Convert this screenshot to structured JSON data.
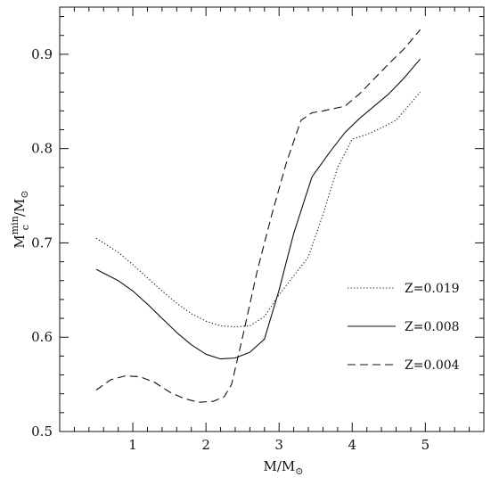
{
  "chart_data": {
    "type": "line",
    "title": "",
    "xlabel": "M/M",
    "xlabel_sub": "⊙",
    "ylabel": "M",
    "ylabel_sup": "min",
    "ylabel_sub": "c",
    "ylabel_tail": "/M",
    "ylabel_tail_sub": "⊙",
    "xlim": [
      0.0,
      5.8
    ],
    "ylim": [
      0.5,
      0.95
    ],
    "xticks": [
      1,
      2,
      3,
      4,
      5
    ],
    "yticks": [
      0.5,
      0.6,
      0.7,
      0.8,
      0.9
    ],
    "xtick_labels": [
      "1",
      "2",
      "3",
      "4",
      "5"
    ],
    "ytick_labels": [
      "0.5",
      "0.6",
      "0.7",
      "0.8",
      "0.9"
    ],
    "grid": false,
    "legend_position": "right",
    "series": [
      {
        "name": "Z=0.019",
        "style": "dotted",
        "x": [
          0.5,
          0.8,
          1.0,
          1.2,
          1.4,
          1.6,
          1.8,
          2.0,
          2.2,
          2.4,
          2.6,
          2.8,
          3.0,
          3.2,
          3.4,
          3.6,
          3.8,
          4.0,
          4.2,
          4.4,
          4.6,
          4.8,
          4.93
        ],
        "y": [
          0.705,
          0.69,
          0.677,
          0.663,
          0.649,
          0.636,
          0.625,
          0.617,
          0.612,
          0.611,
          0.612,
          0.622,
          0.645,
          0.665,
          0.685,
          0.73,
          0.78,
          0.81,
          0.815,
          0.822,
          0.83,
          0.848,
          0.86
        ]
      },
      {
        "name": "Z=0.008",
        "style": "solid",
        "x": [
          0.5,
          0.8,
          1.0,
          1.2,
          1.4,
          1.6,
          1.8,
          2.0,
          2.2,
          2.4,
          2.6,
          2.8,
          3.0,
          3.2,
          3.45,
          3.7,
          3.9,
          4.1,
          4.3,
          4.5,
          4.7,
          4.93
        ],
        "y": [
          0.672,
          0.66,
          0.649,
          0.635,
          0.62,
          0.605,
          0.592,
          0.582,
          0.577,
          0.578,
          0.584,
          0.598,
          0.65,
          0.71,
          0.77,
          0.797,
          0.817,
          0.832,
          0.845,
          0.858,
          0.874,
          0.895
        ]
      },
      {
        "name": "Z=0.004",
        "style": "dashed",
        "x": [
          0.5,
          0.7,
          0.9,
          1.1,
          1.3,
          1.5,
          1.7,
          1.9,
          2.1,
          2.25,
          2.35,
          2.5,
          2.7,
          2.9,
          3.1,
          3.3,
          3.45,
          3.6,
          3.9,
          4.1,
          4.3,
          4.5,
          4.7,
          4.93
        ],
        "y": [
          0.544,
          0.555,
          0.559,
          0.558,
          0.552,
          0.542,
          0.535,
          0.531,
          0.532,
          0.537,
          0.55,
          0.6,
          0.67,
          0.73,
          0.785,
          0.83,
          0.838,
          0.84,
          0.845,
          0.858,
          0.874,
          0.89,
          0.905,
          0.926
        ]
      }
    ]
  }
}
